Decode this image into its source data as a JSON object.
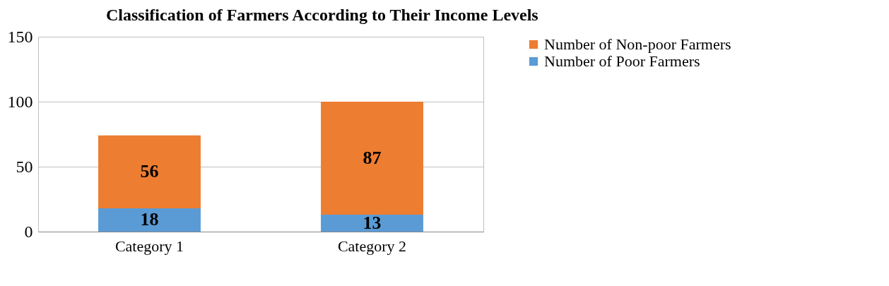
{
  "chart_data": {
    "type": "bar",
    "title": "Classification of Farmers According to Their Income Levels",
    "categories": [
      "Category 1",
      "Category 2"
    ],
    "stacked": true,
    "series": [
      {
        "name": "Number of Poor Farmers",
        "color": "#5b9bd5",
        "values": [
          18,
          13
        ]
      },
      {
        "name": "Number of Non-poor Farmers",
        "color": "#ed7d31",
        "values": [
          56,
          87
        ]
      }
    ],
    "ylim": [
      0,
      150
    ],
    "yticks": [
      0,
      50,
      100,
      150
    ],
    "grid": "y",
    "legend": "right",
    "data_labels": true
  }
}
